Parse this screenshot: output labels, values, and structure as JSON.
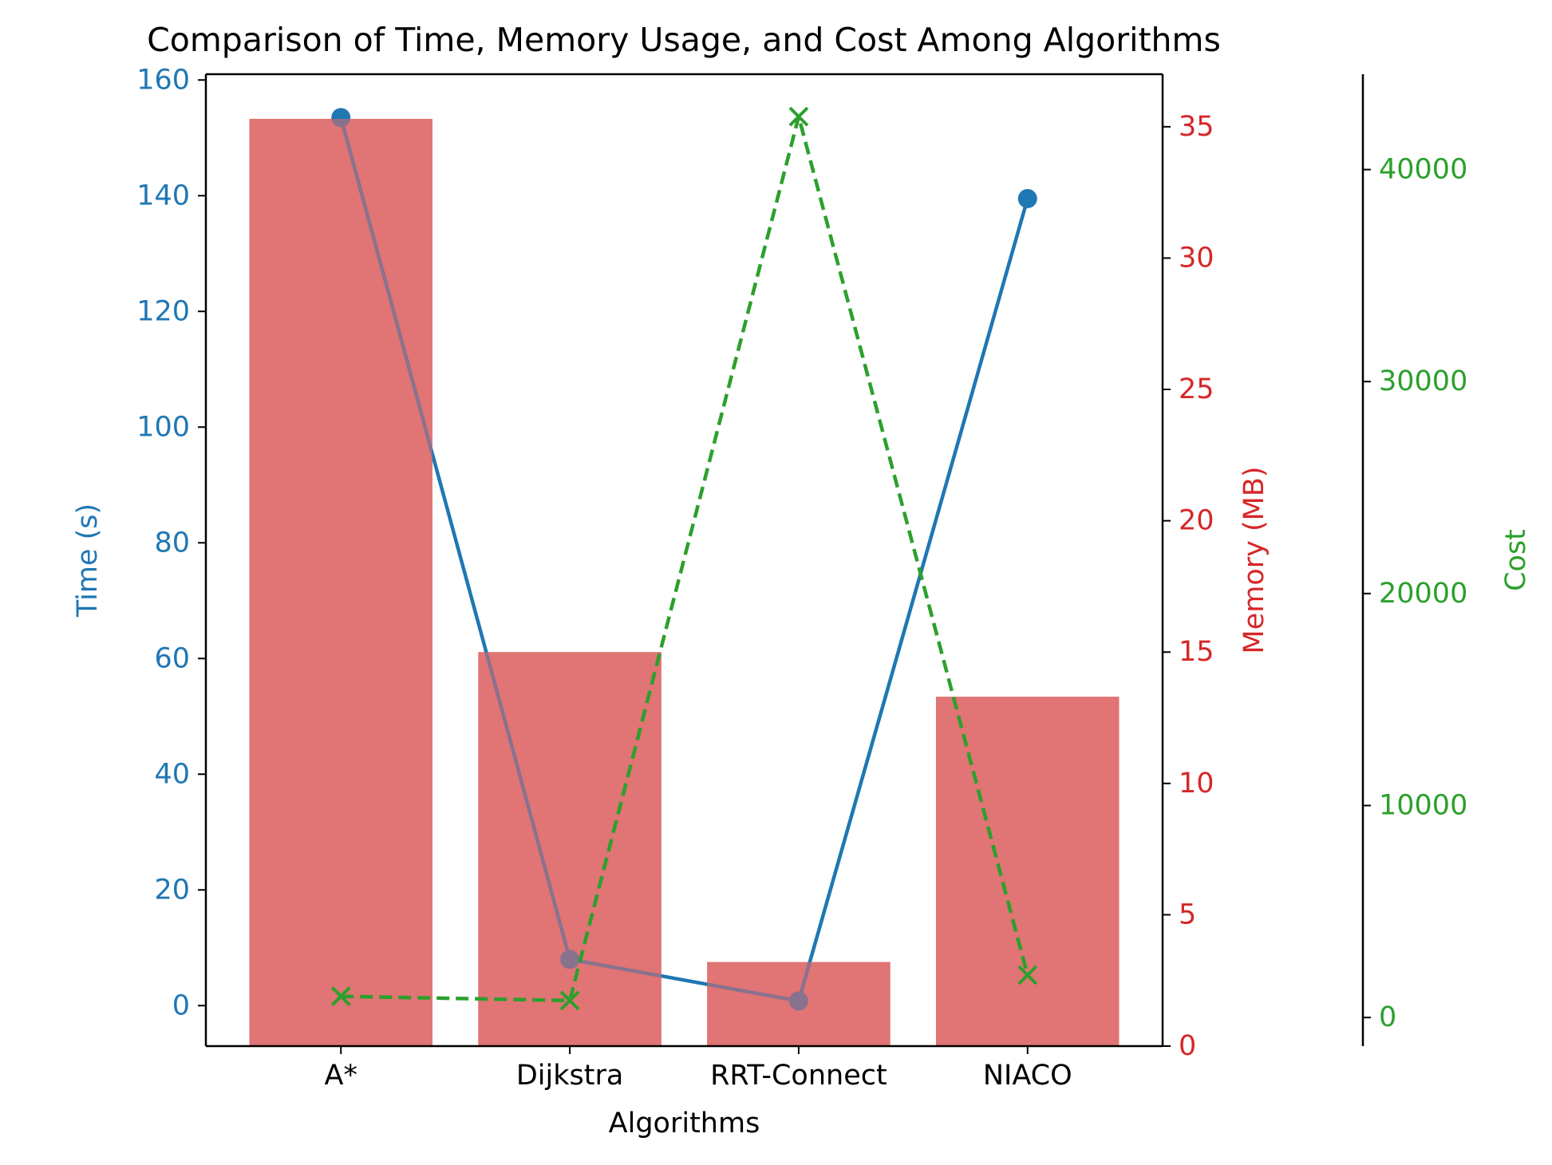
{
  "chart_data": {
    "type": "bar+line",
    "title": "Comparison of Time, Memory Usage, and Cost Among Algorithms",
    "xlabel": "Algorithms",
    "categories": [
      "A*",
      "Dijkstra",
      "RRT-Connect",
      "NIACO"
    ],
    "series": [
      {
        "name": "Memory (MB)",
        "type": "bar",
        "axis": "memory",
        "color": "#e07070",
        "values": [
          35.3,
          15.0,
          3.2,
          13.3
        ]
      },
      {
        "name": "Time (s)",
        "type": "line",
        "axis": "time",
        "color": "#1f77b4",
        "marker": "circle",
        "line_style": "solid",
        "values": [
          153.5,
          8.0,
          0.8,
          139.5
        ]
      },
      {
        "name": "Cost",
        "type": "line",
        "axis": "cost",
        "color": "#2ca02c",
        "marker": "x",
        "line_style": "dashed",
        "values": [
          1000,
          800,
          42500,
          2000
        ]
      }
    ],
    "axes": {
      "time": {
        "label": "Time (s)",
        "color": "#1f77b4",
        "ylim": [
          -7,
          161
        ],
        "ticks": [
          0,
          20,
          40,
          60,
          80,
          100,
          120,
          140,
          160
        ]
      },
      "memory": {
        "label": "Memory (MB)",
        "color": "#d62728",
        "ylim": [
          0,
          37
        ],
        "ticks": [
          0,
          5,
          10,
          15,
          20,
          25,
          30,
          35
        ]
      },
      "cost": {
        "label": "Cost",
        "color": "#2ca02c",
        "ylim": [
          -1350,
          44500
        ],
        "ticks": [
          0,
          10000,
          20000,
          30000,
          40000
        ]
      }
    },
    "grid": false,
    "legend": "none"
  }
}
